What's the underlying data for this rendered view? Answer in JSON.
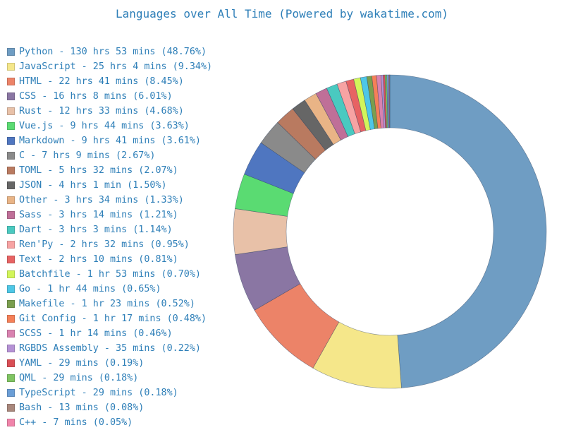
{
  "chart_data": {
    "type": "pie",
    "title": "Languages over All Time (Powered by wakatime.com)",
    "legend_position": "left",
    "slices": [
      {
        "label": "Python - 130 hrs 53 mins (48.76%)",
        "value": 48.76,
        "color": "#6f9dc3"
      },
      {
        "label": "JavaScript - 25 hrs 4 mins (9.34%)",
        "value": 9.34,
        "color": "#f5e78a"
      },
      {
        "label": "HTML - 22 hrs 41 mins (8.45%)",
        "value": 8.45,
        "color": "#ec8368"
      },
      {
        "label": "CSS - 16 hrs 8 mins (6.01%)",
        "value": 6.01,
        "color": "#8a76a3"
      },
      {
        "label": "Rust - 12 hrs 33 mins (4.68%)",
        "value": 4.68,
        "color": "#e8c1a8"
      },
      {
        "label": "Vue.js - 9 hrs 44 mins (3.63%)",
        "value": 3.63,
        "color": "#5adb72"
      },
      {
        "label": "Markdown - 9 hrs 41 mins (3.61%)",
        "value": 3.61,
        "color": "#4f76c0"
      },
      {
        "label": "C - 7 hrs 9 mins (2.67%)",
        "value": 2.67,
        "color": "#8a8a8a"
      },
      {
        "label": "TOML - 5 hrs 32 mins (2.07%)",
        "value": 2.07,
        "color": "#b97a60"
      },
      {
        "label": "JSON - 4 hrs 1 min (1.50%)",
        "value": 1.5,
        "color": "#666666"
      },
      {
        "label": "Other - 3 hrs 34 mins (1.33%)",
        "value": 1.33,
        "color": "#e9b486"
      },
      {
        "label": "Sass - 3 hrs 14 mins (1.21%)",
        "value": 1.21,
        "color": "#bf6f98"
      },
      {
        "label": "Dart - 3 hrs 3 mins (1.14%)",
        "value": 1.14,
        "color": "#4ac9c0"
      },
      {
        "label": "Ren'Py - 2 hrs 32 mins (0.95%)",
        "value": 0.95,
        "color": "#f7a3a3"
      },
      {
        "label": "Text - 2 hrs 10 mins (0.81%)",
        "value": 0.81,
        "color": "#e76363"
      },
      {
        "label": "Batchfile - 1 hr 53 mins (0.70%)",
        "value": 0.7,
        "color": "#d2f55a"
      },
      {
        "label": "Go - 1 hr 44 mins (0.65%)",
        "value": 0.65,
        "color": "#4ec7e6"
      },
      {
        "label": "Makefile - 1 hr 23 mins (0.52%)",
        "value": 0.52,
        "color": "#7a9e4e"
      },
      {
        "label": "Git Config - 1 hr 17 mins (0.48%)",
        "value": 0.48,
        "color": "#f58058"
      },
      {
        "label": "SCSS - 1 hr 14 mins (0.46%)",
        "value": 0.46,
        "color": "#d982b0"
      },
      {
        "label": "RGBDS Assembly - 35 mins (0.22%)",
        "value": 0.22,
        "color": "#b592d5"
      },
      {
        "label": "YAML - 29 mins (0.19%)",
        "value": 0.19,
        "color": "#d94e55"
      },
      {
        "label": "QML - 29 mins (0.18%)",
        "value": 0.18,
        "color": "#7fc462"
      },
      {
        "label": "TypeScript - 29 mins (0.18%)",
        "value": 0.18,
        "color": "#6b9ed6"
      },
      {
        "label": "Bash - 13 mins (0.08%)",
        "value": 0.08,
        "color": "#a8877c"
      },
      {
        "label": "C++ - 7 mins (0.05%)",
        "value": 0.05,
        "color": "#f084aa"
      }
    ]
  }
}
